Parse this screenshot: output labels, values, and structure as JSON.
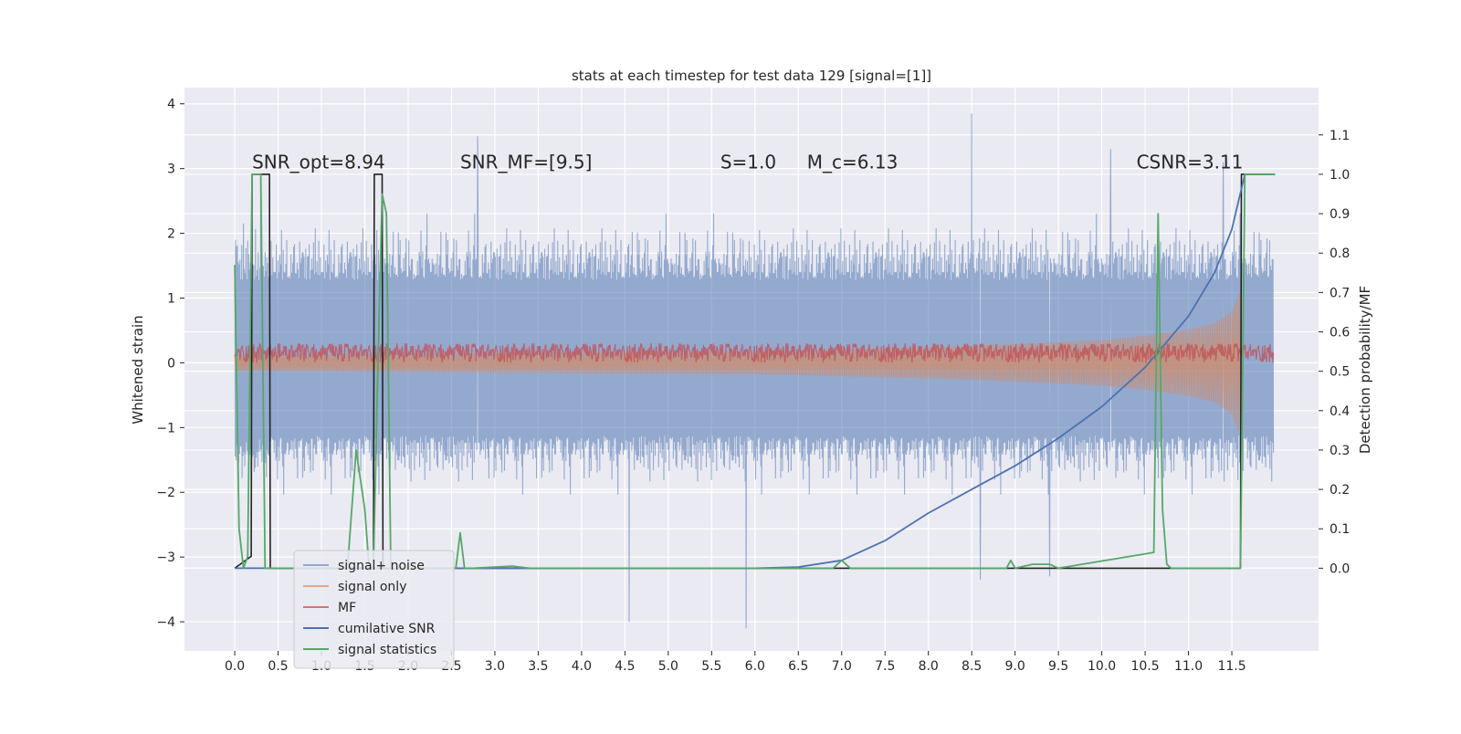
{
  "chart_data": {
    "type": "line",
    "title": "stats at each timestep for test data 129 [signal=[1]]",
    "xlabel": "",
    "ylabel": "Whitened strain",
    "y2label": "Detection probability/MF",
    "xlim": [
      -0.58,
      12.5
    ],
    "ylim": [
      -4.45,
      4.25
    ],
    "y2lim": [
      -0.21,
      1.22
    ],
    "x_ticks": [
      0.0,
      0.5,
      1.0,
      1.5,
      2.0,
      2.5,
      3.0,
      3.5,
      4.0,
      4.5,
      5.0,
      5.5,
      6.0,
      6.5,
      7.0,
      7.5,
      8.0,
      8.5,
      9.0,
      9.5,
      10.0,
      10.5,
      11.0,
      11.5
    ],
    "x_tick_labels": [
      "0.0",
      "0.5",
      "1.0",
      "1.5",
      "2.0",
      "2.5",
      "3.0",
      "3.5",
      "4.0",
      "4.5",
      "5.0",
      "5.5",
      "6.0",
      "6.5",
      "7.0",
      "7.5",
      "8.0",
      "8.5",
      "9.0",
      "9.5",
      "10.0",
      "10.5",
      "11.0",
      "11.5"
    ],
    "y_ticks": [
      -4,
      -3,
      -2,
      -1,
      0,
      1,
      2,
      3,
      4
    ],
    "y_tick_labels": [
      "−4",
      "−3",
      "−2",
      "−1",
      "0",
      "1",
      "2",
      "3",
      "4"
    ],
    "y2_ticks": [
      0.0,
      0.1,
      0.2,
      0.3,
      0.4,
      0.5,
      0.6,
      0.7,
      0.8,
      0.9,
      1.0,
      1.1
    ],
    "y2_tick_labels": [
      "0.0",
      "0.1",
      "0.2",
      "0.3",
      "0.4",
      "0.5",
      "0.6",
      "0.7",
      "0.8",
      "0.9",
      "1.0",
      "1.1"
    ],
    "grid": true,
    "legend_position": "lower-left",
    "annotations": [
      {
        "x": 0.2,
        "y": 3.0,
        "label": "SNR_opt=8.94"
      },
      {
        "x": 2.6,
        "y": 3.0,
        "label": "SNR_MF=[9.5]"
      },
      {
        "x": 5.6,
        "y": 3.0,
        "label": "S=1.0"
      },
      {
        "x": 6.6,
        "y": 3.0,
        "label": "M_c=6.13"
      },
      {
        "x": 10.4,
        "y": 3.0,
        "label": "CSNR=3.11"
      }
    ],
    "series": [
      {
        "name": "signal+ noise",
        "axis": "left",
        "color": "#4c72b0",
        "kind": "noise-envelope",
        "typical_envelope": [
          -1.5,
          1.7
        ],
        "spikes": [
          [
            0.3,
            2.9
          ],
          [
            1.7,
            2.6
          ],
          [
            2.8,
            3.5
          ],
          [
            4.55,
            -4.0
          ],
          [
            5.9,
            -4.1
          ],
          [
            8.5,
            3.85
          ],
          [
            8.6,
            -3.35
          ],
          [
            9.4,
            -3.3
          ],
          [
            10.1,
            3.3
          ],
          [
            11.4,
            3.1
          ]
        ]
      },
      {
        "name": "signal only",
        "axis": "left",
        "color": "#dd8452",
        "kind": "chirp",
        "x": [
          0.0,
          2.0,
          4.0,
          6.0,
          7.0,
          8.0,
          9.0,
          10.0,
          10.5,
          11.0,
          11.3,
          11.5,
          11.6
        ],
        "amplitude": [
          0.08,
          0.09,
          0.1,
          0.11,
          0.13,
          0.15,
          0.18,
          0.22,
          0.26,
          0.32,
          0.38,
          0.5,
          0.7
        ]
      },
      {
        "name": "MF",
        "axis": "left",
        "color": "#c44e52",
        "kind": "band",
        "center": 0.15,
        "halfwidth": 0.15
      },
      {
        "name": "cumilative SNR",
        "axis": "right",
        "color": "#4c72b0",
        "x": [
          0.0,
          6.0,
          6.5,
          7.0,
          7.5,
          8.0,
          8.5,
          9.0,
          9.5,
          10.0,
          10.5,
          11.0,
          11.3,
          11.5,
          11.65
        ],
        "values": [
          0.0,
          0.0,
          0.003,
          0.02,
          0.07,
          0.14,
          0.2,
          0.26,
          0.33,
          0.41,
          0.51,
          0.64,
          0.75,
          0.86,
          1.0
        ]
      },
      {
        "name": "signal statistics",
        "axis": "right",
        "color": "#55a868",
        "x": [
          0.0,
          0.05,
          0.1,
          0.15,
          0.2,
          0.25,
          0.3,
          0.35,
          0.4,
          0.45,
          1.3,
          1.4,
          1.5,
          1.55,
          1.6,
          1.65,
          1.7,
          1.75,
          1.8,
          2.4,
          2.55,
          2.6,
          2.65,
          2.75,
          3.2,
          3.4,
          6.5,
          6.9,
          7.0,
          7.1,
          8.9,
          8.95,
          9.0,
          9.2,
          9.4,
          9.5,
          10.6,
          10.65,
          10.7,
          10.75,
          10.8,
          10.9,
          11.6,
          11.65,
          12.0
        ],
        "values": [
          0.77,
          0.1,
          0.0,
          0.03,
          1.0,
          1.0,
          1.0,
          0.0,
          0.0,
          0.0,
          0.0,
          0.3,
          0.15,
          0.0,
          0.0,
          0.5,
          0.95,
          0.9,
          0.0,
          0.0,
          0.0,
          0.09,
          0.0,
          0.0,
          0.005,
          0.0,
          0.0,
          0.0,
          0.02,
          0.0,
          0.0,
          0.02,
          0.0,
          0.01,
          0.01,
          0.0,
          0.04,
          0.9,
          0.15,
          0.01,
          0.0,
          0.0,
          0.0,
          1.0,
          1.0
        ]
      },
      {
        "name": "",
        "axis": "right",
        "color": "#222222",
        "kind": "detection-step",
        "x": [
          0.0,
          0.19,
          0.2,
          0.4,
          0.41,
          1.6,
          1.61,
          1.7,
          1.71,
          11.6,
          11.61,
          12.0
        ],
        "values": [
          0.0,
          0.03,
          1.0,
          1.0,
          0.0,
          0.0,
          1.0,
          1.0,
          0.0,
          0.0,
          1.0,
          1.0
        ]
      }
    ]
  }
}
